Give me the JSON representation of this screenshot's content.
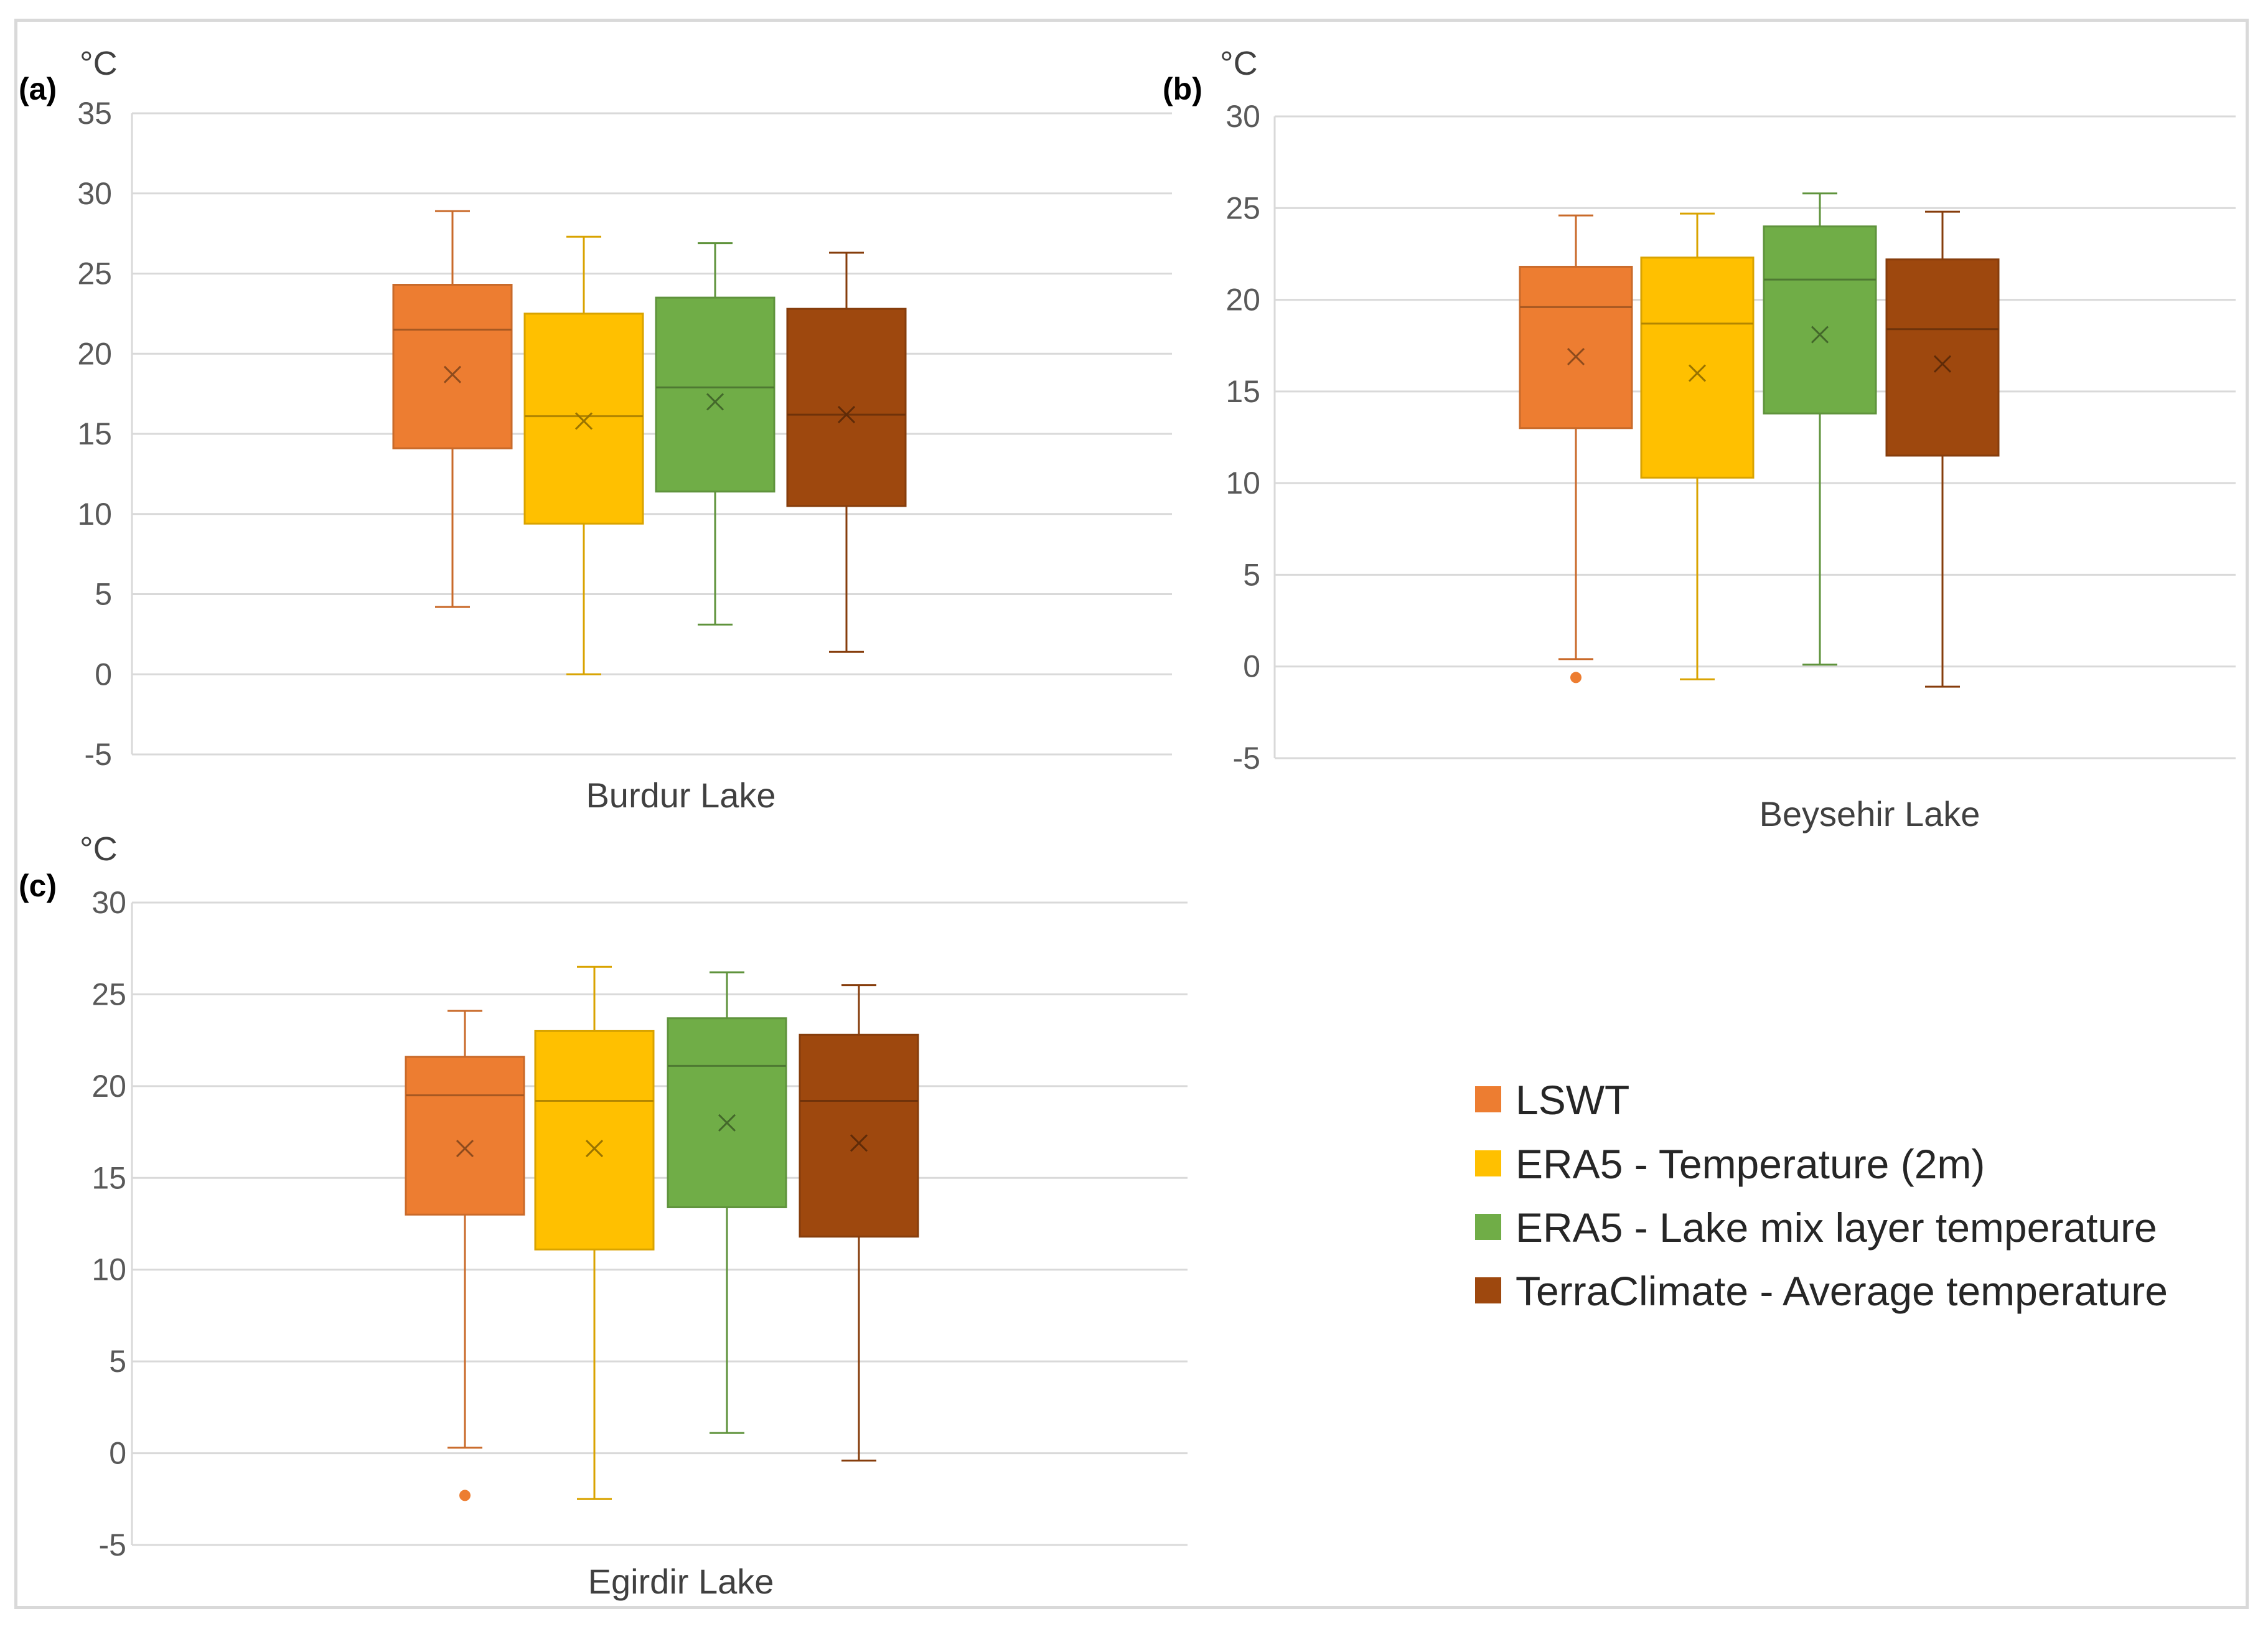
{
  "chart_data": [
    {
      "type": "box",
      "panel_label": "(a)",
      "unit": "°C",
      "category": "Burdur Lake",
      "ylim": [
        -5,
        35
      ],
      "yticks": [
        -5,
        0,
        5,
        10,
        15,
        20,
        25,
        30,
        35
      ],
      "grid": true,
      "series": [
        {
          "name": "LSWT",
          "color": "#ED7D31",
          "min": 4.2,
          "q1": 14.1,
          "median": 21.5,
          "q3": 24.3,
          "max": 28.9,
          "mean": 18.7,
          "outliers": []
        },
        {
          "name": "ERA5 - Temperature (2m)",
          "color": "#FFC000",
          "min": 0.0,
          "q1": 9.4,
          "median": 16.1,
          "q3": 22.5,
          "max": 27.3,
          "mean": 15.8,
          "outliers": []
        },
        {
          "name": "ERA5 - Lake mix layer temperature",
          "color": "#70AD47",
          "min": 3.1,
          "q1": 11.4,
          "median": 17.9,
          "q3": 23.5,
          "max": 26.9,
          "mean": 17.0,
          "outliers": []
        },
        {
          "name": "TerraClimate - Average temperature",
          "color": "#9E480E",
          "min": 1.4,
          "q1": 10.5,
          "median": 16.2,
          "q3": 22.8,
          "max": 26.3,
          "mean": 16.2,
          "outliers": []
        }
      ]
    },
    {
      "type": "box",
      "panel_label": "(b)",
      "unit": "°C",
      "category": "Beysehir Lake",
      "ylim": [
        -5,
        30
      ],
      "yticks": [
        -5,
        0,
        5,
        10,
        15,
        20,
        25,
        30
      ],
      "grid": true,
      "series": [
        {
          "name": "LSWT",
          "color": "#ED7D31",
          "min": 0.4,
          "q1": 13.0,
          "median": 19.6,
          "q3": 21.8,
          "max": 24.6,
          "mean": 16.9,
          "outliers": [
            -0.6
          ]
        },
        {
          "name": "ERA5 - Temperature (2m)",
          "color": "#FFC000",
          "min": -0.7,
          "q1": 10.3,
          "median": 18.7,
          "q3": 22.3,
          "max": 24.7,
          "mean": 16.0,
          "outliers": []
        },
        {
          "name": "ERA5 - Lake mix layer temperature",
          "color": "#70AD47",
          "min": 0.1,
          "q1": 13.8,
          "median": 21.1,
          "q3": 24.0,
          "max": 25.8,
          "mean": 18.1,
          "outliers": []
        },
        {
          "name": "TerraClimate - Average temperature",
          "color": "#9E480E",
          "min": -1.1,
          "q1": 11.5,
          "median": 18.4,
          "q3": 22.2,
          "max": 24.8,
          "mean": 16.5,
          "outliers": []
        }
      ]
    },
    {
      "type": "box",
      "panel_label": "(c)",
      "unit": "°C",
      "category": "Egirdir Lake",
      "ylim": [
        -5,
        30
      ],
      "yticks": [
        -5,
        0,
        5,
        10,
        15,
        20,
        25,
        30
      ],
      "grid": true,
      "series": [
        {
          "name": "LSWT",
          "color": "#ED7D31",
          "min": 0.3,
          "q1": 13.0,
          "median": 19.5,
          "q3": 21.6,
          "max": 24.1,
          "mean": 16.6,
          "outliers": [
            -2.3
          ]
        },
        {
          "name": "ERA5 - Temperature (2m)",
          "color": "#FFC000",
          "min": -2.5,
          "q1": 11.1,
          "median": 19.2,
          "q3": 23.0,
          "max": 26.5,
          "mean": 16.6,
          "outliers": []
        },
        {
          "name": "ERA5 - Lake mix layer temperature",
          "color": "#70AD47",
          "min": 1.1,
          "q1": 13.4,
          "median": 21.1,
          "q3": 23.7,
          "max": 26.2,
          "mean": 18.0,
          "outliers": []
        },
        {
          "name": "TerraClimate - Average temperature",
          "color": "#9E480E",
          "min": -0.4,
          "q1": 11.8,
          "median": 19.2,
          "q3": 22.8,
          "max": 25.5,
          "mean": 16.9,
          "outliers": []
        }
      ]
    }
  ],
  "legend": {
    "placement": "bottom-right",
    "items": [
      {
        "label": "LSWT",
        "color": "#ED7D31"
      },
      {
        "label": "ERA5 - Temperature (2m)",
        "color": "#FFC000"
      },
      {
        "label": "ERA5 - Lake mix layer temperature",
        "color": "#70AD47"
      },
      {
        "label": "TerraClimate - Average temperature",
        "color": "#9E480E"
      }
    ]
  }
}
